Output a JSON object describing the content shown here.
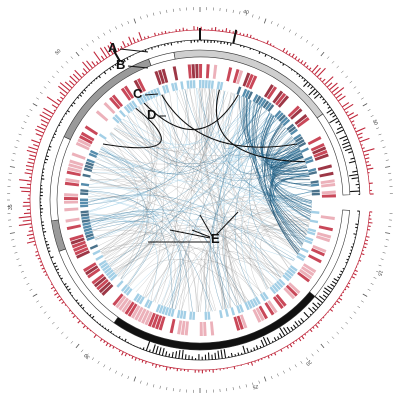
{
  "figure": {
    "annotations": [
      {
        "id": "A",
        "label": "A"
      },
      {
        "id": "B",
        "label": "B"
      },
      {
        "id": "C",
        "label": "C"
      },
      {
        "id": "D",
        "label": "D"
      },
      {
        "id": "E",
        "label": "E"
      }
    ],
    "tick_labels": [
      "40",
      "50",
      "10",
      "15",
      "20",
      "25",
      "30",
      "35"
    ],
    "colors": {
      "red": "#c0283c",
      "dark_red": "#8c1426",
      "pink": "#e9a3ae",
      "blue": "#2a6f97",
      "light_blue": "#8cc3e0",
      "black": "#111111",
      "gray": "#9a9a9a",
      "light_gray": "#cfcfcf",
      "link_gray": "#8a8a8a"
    },
    "tracks": [
      {
        "name": "outer-histogram",
        "color": "red"
      },
      {
        "name": "inner-histogram",
        "color": "black"
      },
      {
        "name": "karyotype-ring",
        "color": "gray"
      },
      {
        "name": "red-heatmap-ring",
        "color": "red"
      },
      {
        "name": "blue-heatmap-ring",
        "color": "blue"
      },
      {
        "name": "link-bundle",
        "color": "link_gray"
      }
    ]
  }
}
